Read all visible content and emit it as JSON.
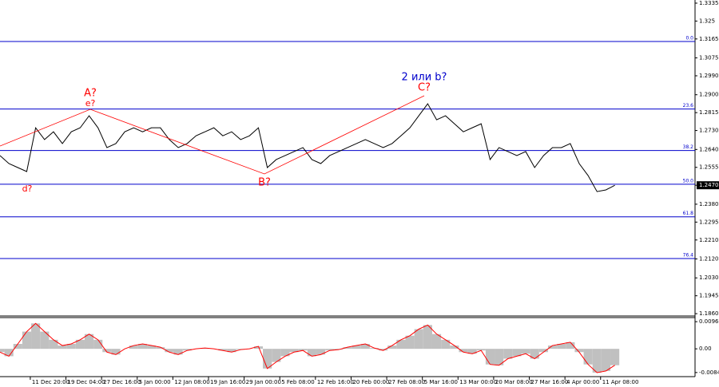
{
  "chart_data": [
    {
      "type": "line",
      "color": "#000000",
      "xlim": [
        0,
        78
      ],
      "ylim": [
        1.1849,
        1.335
      ],
      "x": [
        0,
        1,
        2,
        3,
        4,
        5,
        6,
        7,
        8,
        9,
        10,
        11,
        12,
        13,
        14,
        15,
        16,
        17,
        18,
        19,
        20,
        21,
        22,
        23,
        24,
        25,
        26,
        27,
        28,
        29,
        30,
        31,
        32,
        33,
        34,
        35,
        36,
        37,
        38,
        39,
        40,
        41,
        42,
        43,
        44,
        45,
        46,
        47,
        48,
        49,
        50,
        51,
        52,
        53,
        54,
        55,
        56,
        57,
        58,
        59,
        60,
        61,
        62,
        63,
        64,
        65,
        66,
        67,
        68,
        69
      ],
      "values": [
        1.2611,
        1.2573,
        1.2554,
        1.2535,
        1.2743,
        1.2687,
        1.2724,
        1.2668,
        1.2724,
        1.2743,
        1.28,
        1.2743,
        1.2649,
        1.2668,
        1.2724,
        1.2743,
        1.2724,
        1.2743,
        1.2743,
        1.2687,
        1.2649,
        1.2668,
        1.2705,
        1.2724,
        1.2743,
        1.2705,
        1.2724,
        1.2687,
        1.2705,
        1.2743,
        1.2554,
        1.2592,
        1.2611,
        1.263,
        1.2649,
        1.2592,
        1.2573,
        1.2611,
        1.263,
        1.2649,
        1.2668,
        1.2687,
        1.2668,
        1.2649,
        1.2668,
        1.2705,
        1.2743,
        1.28,
        1.2857,
        1.2781,
        1.28,
        1.2762,
        1.2724,
        1.2743,
        1.2762,
        1.2592,
        1.2649,
        1.263,
        1.2611,
        1.263,
        1.2554,
        1.2611,
        1.2649,
        1.2649,
        1.2668,
        1.2573,
        1.2516,
        1.244,
        1.2448,
        1.247
      ],
      "yticks": [
        1.3335,
        1.325,
        1.3165,
        1.3075,
        {
          "value": 1.299,
          "label": "1.2990"
        },
        {
          "value": 1.29,
          "label": "1.2900"
        },
        1.2815,
        {
          "value": 1.273,
          "label": "1.2730"
        },
        {
          "value": 1.264,
          "label": "1.2640"
        },
        1.2555,
        {
          "value": 1.247,
          "label": "1.2470"
        },
        {
          "value": 1.238,
          "label": "1.2380"
        },
        1.2295,
        {
          "value": 1.221,
          "label": "1.2210"
        },
        {
          "value": 1.212,
          "label": "1.2120"
        },
        {
          "value": 1.203,
          "label": "1.2030"
        },
        1.1945,
        {
          "value": 1.186,
          "label": "1.1860"
        }
      ],
      "xticks": [
        {
          "value": 3.4,
          "label": "11 Dec 20:00"
        },
        {
          "value": 7.4,
          "label": "19 Dec 04:00"
        },
        {
          "value": 11.4,
          "label": "27 Dec 16:00"
        },
        {
          "value": 15.4,
          "label": "5 Jan 00:00"
        },
        {
          "value": 19.4,
          "label": "12 Jan 08:00"
        },
        {
          "value": 23.4,
          "label": "19 Jan 16:00"
        },
        {
          "value": 27.4,
          "label": "29 Jan 00:00"
        },
        {
          "value": 31.4,
          "label": "5 Feb 08:00"
        },
        {
          "value": 35.4,
          "label": "12 Feb 16:00"
        },
        {
          "value": 39.4,
          "label": "20 Feb 00:00"
        },
        {
          "value": 43.4,
          "label": "27 Feb 08:00"
        },
        {
          "value": 47.4,
          "label": "5 Mar 16:00"
        },
        {
          "value": 51.4,
          "label": "13 Mar 00:00"
        },
        {
          "value": 55.4,
          "label": "20 Mar 08:00"
        },
        {
          "value": 59.4,
          "label": "27 Mar 16:00"
        },
        {
          "value": 63.4,
          "label": "4 Apr 00:00"
        },
        {
          "value": 67.4,
          "label": "11 Apr 08:00"
        }
      ],
      "levels": [
        {
          "value": 1.3153,
          "label": "0.0"
        },
        {
          "value": 1.2832,
          "label": "23.6"
        },
        {
          "value": 1.2635,
          "label": "38.2"
        },
        {
          "value": 1.2475,
          "label": "50.0"
        },
        {
          "value": 1.232,
          "label": "61.8"
        },
        {
          "value": 1.2122,
          "label": "76.4"
        }
      ],
      "level_color": "#0000cc",
      "annotations": [
        "2 или b?",
        "A?",
        "e?",
        "d?",
        "B?",
        "C?"
      ]
    },
    {
      "type": "histogram",
      "color": "#c0c0c0",
      "line_color": "#ff0000",
      "xlim": [
        0,
        78
      ],
      "ylim": [
        -0.00991,
        0.01114
      ],
      "x": [
        0,
        1,
        2,
        3,
        4,
        5,
        6,
        7,
        8,
        9,
        10,
        11,
        12,
        13,
        14,
        15,
        16,
        17,
        18,
        19,
        20,
        21,
        22,
        23,
        24,
        25,
        26,
        27,
        28,
        29,
        30,
        31,
        32,
        33,
        34,
        35,
        36,
        37,
        38,
        39,
        40,
        41,
        42,
        43,
        44,
        45,
        46,
        47,
        48,
        49,
        50,
        51,
        52,
        53,
        54,
        55,
        56,
        57,
        58,
        59,
        60,
        61,
        62,
        63,
        64,
        65,
        66,
        67,
        68,
        69
      ],
      "values": [
        -0.00117,
        -0.00263,
        0.00175,
        0.00614,
        0.00906,
        0.00614,
        0.00322,
        0.00117,
        0.00175,
        0.00322,
        0.00526,
        0.00322,
        -0.00117,
        -0.00205,
        0,
        0.00117,
        0.00175,
        0.00117,
        0.00058,
        -0.00117,
        -0.00205,
        -0.00058,
        0,
        0.00029,
        0,
        -0.00058,
        -0.00117,
        -0.00029,
        0,
        0.00088,
        -0.00702,
        -0.00468,
        -0.00263,
        -0.00117,
        -0.00058,
        -0.00263,
        -0.00205,
        -0.00058,
        -0.00029,
        0.00058,
        0.00117,
        0.00175,
        0.00029,
        -0.00058,
        0.00117,
        0.00322,
        0.00468,
        0.00702,
        0.00848,
        0.00526,
        0.00322,
        0.00117,
        -0.00117,
        -0.00175,
        -0.00058,
        -0.00556,
        -0.00585,
        -0.00351,
        -0.00263,
        -0.00175,
        -0.00351,
        -0.00117,
        0.00117,
        0.00175,
        0.00234,
        -0.00117,
        -0.00556,
        -0.00848,
        -0.00789,
        -0.00585
      ],
      "yticks": [
        0.00968,
        {
          "value": 0,
          "label": "0.00"
        },
        -0.00845
      ]
    }
  ]
}
